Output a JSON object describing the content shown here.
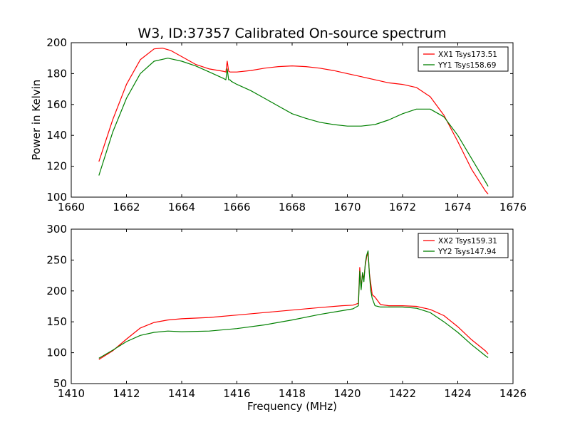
{
  "figure": {
    "title": "W3, ID:37357 Calibrated On-source spectrum"
  },
  "chart_data": [
    {
      "type": "line",
      "title": "W3, ID:37357 Calibrated On-source spectrum",
      "xlabel": "",
      "ylabel": "Power in Kelvin",
      "xlim": [
        1660,
        1676
      ],
      "ylim": [
        100,
        200
      ],
      "xticks": [
        1660,
        1662,
        1664,
        1666,
        1668,
        1670,
        1672,
        1674,
        1676
      ],
      "yticks": [
        100,
        120,
        140,
        160,
        180,
        200
      ],
      "legend_position": "top-right",
      "series": [
        {
          "name": "XX1 Tsys173.51",
          "color": "#ff0000",
          "x": [
            1661.0,
            1661.5,
            1662.0,
            1662.5,
            1663.0,
            1663.3,
            1663.6,
            1664.0,
            1664.5,
            1665.0,
            1665.5,
            1665.6,
            1665.65,
            1665.7,
            1665.75,
            1665.8,
            1666.0,
            1666.5,
            1667.0,
            1667.5,
            1668.0,
            1668.5,
            1669.0,
            1669.5,
            1670.0,
            1670.5,
            1671.0,
            1671.5,
            1672.0,
            1672.5,
            1673.0,
            1673.5,
            1674.0,
            1674.5,
            1675.0,
            1675.1
          ],
          "y": [
            123,
            150,
            173,
            189,
            196,
            196.5,
            195,
            191,
            186,
            183,
            181.5,
            181,
            188,
            181.5,
            181,
            181,
            181,
            182,
            183.5,
            184.5,
            185,
            184.5,
            183.5,
            182,
            180,
            178,
            176,
            174,
            173,
            171,
            165,
            153,
            136,
            118,
            104,
            102
          ]
        },
        {
          "name": "YY1 Tsys158.69",
          "color": "#008000",
          "x": [
            1661.0,
            1661.5,
            1662.0,
            1662.5,
            1663.0,
            1663.5,
            1664.0,
            1664.5,
            1665.0,
            1665.5,
            1665.6,
            1665.65,
            1665.7,
            1665.75,
            1665.8,
            1666.0,
            1666.5,
            1667.0,
            1667.5,
            1668.0,
            1668.5,
            1669.0,
            1669.5,
            1670.0,
            1670.5,
            1671.0,
            1671.5,
            1672.0,
            1672.5,
            1673.0,
            1673.5,
            1674.0,
            1674.5,
            1675.0,
            1675.1
          ],
          "y": [
            114,
            142,
            164,
            180,
            188,
            190,
            188,
            185,
            181,
            177,
            176,
            183,
            176,
            176,
            175,
            173,
            169,
            164,
            159,
            154,
            151,
            148.5,
            147,
            146,
            146,
            147,
            150,
            154,
            157,
            157,
            152,
            140,
            125,
            110,
            107
          ]
        }
      ]
    },
    {
      "type": "line",
      "title": "",
      "xlabel": "Frequency (MHz)",
      "ylabel": "",
      "xlim": [
        1410,
        1426
      ],
      "ylim": [
        50,
        300
      ],
      "xticks": [
        1410,
        1412,
        1414,
        1416,
        1418,
        1420,
        1422,
        1424,
        1426
      ],
      "yticks": [
        50,
        100,
        150,
        200,
        250,
        300
      ],
      "legend_position": "top-right",
      "series": [
        {
          "name": "XX2 Tsys159.31",
          "color": "#ff0000",
          "x": [
            1411.0,
            1411.5,
            1412.0,
            1412.5,
            1413.0,
            1413.5,
            1414.0,
            1415.0,
            1416.0,
            1417.0,
            1418.0,
            1419.0,
            1419.8,
            1420.2,
            1420.4,
            1420.45,
            1420.5,
            1420.55,
            1420.6,
            1420.65,
            1420.7,
            1420.75,
            1420.8,
            1420.85,
            1420.9,
            1421.0,
            1421.2,
            1421.5,
            1422.0,
            1422.5,
            1423.0,
            1423.5,
            1424.0,
            1424.5,
            1425.0,
            1425.1
          ],
          "y": [
            89,
            103,
            122,
            140,
            149,
            153,
            155,
            157,
            161,
            165,
            169,
            173,
            176,
            177,
            180,
            238,
            205,
            228,
            220,
            242,
            255,
            262,
            228,
            212,
            194,
            190,
            178,
            176,
            176,
            175,
            170,
            160,
            142,
            121,
            103,
            98
          ]
        },
        {
          "name": "YY2 Tsys147.94",
          "color": "#008000",
          "x": [
            1411.0,
            1411.5,
            1412.0,
            1412.5,
            1413.0,
            1413.5,
            1414.0,
            1415.0,
            1416.0,
            1417.0,
            1418.0,
            1419.0,
            1419.8,
            1420.2,
            1420.4,
            1420.45,
            1420.5,
            1420.55,
            1420.6,
            1420.65,
            1420.7,
            1420.75,
            1420.8,
            1420.85,
            1420.9,
            1421.0,
            1421.2,
            1421.5,
            1422.0,
            1422.5,
            1423.0,
            1423.5,
            1424.0,
            1424.5,
            1425.0,
            1425.1
          ],
          "y": [
            91,
            104,
            118,
            128,
            133,
            135,
            134,
            135,
            139,
            145,
            153,
            162,
            168,
            171,
            176,
            232,
            202,
            230,
            215,
            245,
            258,
            265,
            226,
            200,
            188,
            176,
            174,
            174,
            174,
            172,
            165,
            150,
            133,
            113,
            95,
            92
          ]
        }
      ]
    }
  ]
}
